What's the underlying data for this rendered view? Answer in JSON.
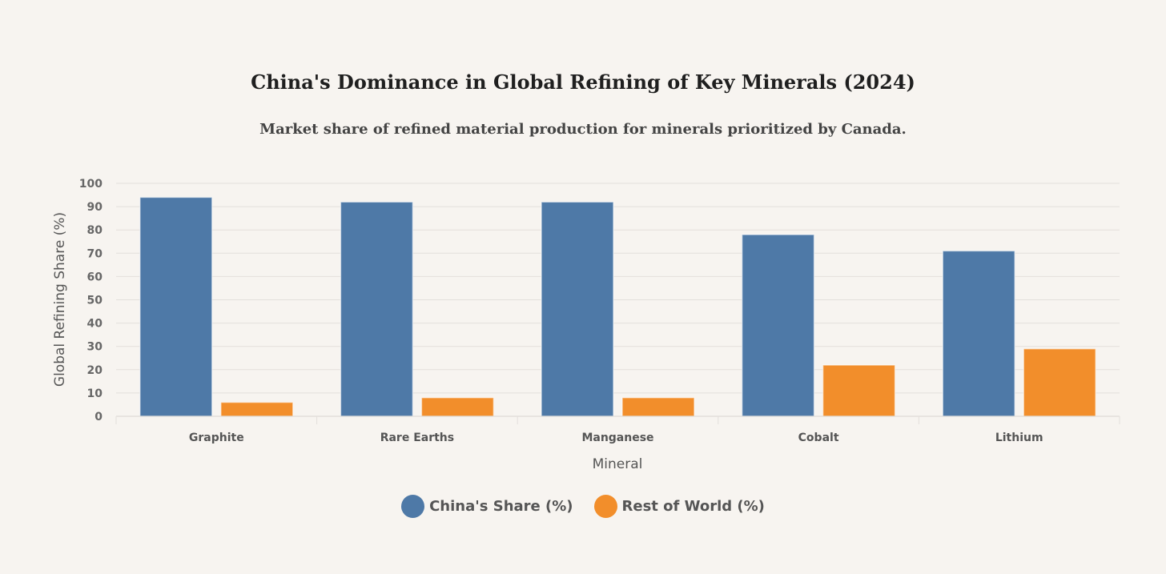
{
  "chart_data": {
    "type": "bar",
    "title": "China's Dominance in Global Refining of Key Minerals (2024)",
    "subtitle": "Market share of refined material production for minerals prioritized by Canada.",
    "xlabel": "Mineral",
    "ylabel": "Global Refining Share (%)",
    "categories": [
      "Graphite",
      "Rare Earths",
      "Manganese",
      "Cobalt",
      "Lithium"
    ],
    "series": [
      {
        "name": "China's Share (%)",
        "values": [
          94,
          92,
          92,
          78,
          71
        ],
        "color": "#4e79a7"
      },
      {
        "name": "Rest of World (%)",
        "values": [
          6,
          8,
          8,
          22,
          29
        ],
        "color": "#f28e2b"
      }
    ],
    "ylim": [
      0,
      100
    ],
    "yticks": [
      0,
      10,
      20,
      30,
      40,
      50,
      60,
      70,
      80,
      90,
      100
    ],
    "grid": true,
    "legend_position": "bottom-center"
  }
}
